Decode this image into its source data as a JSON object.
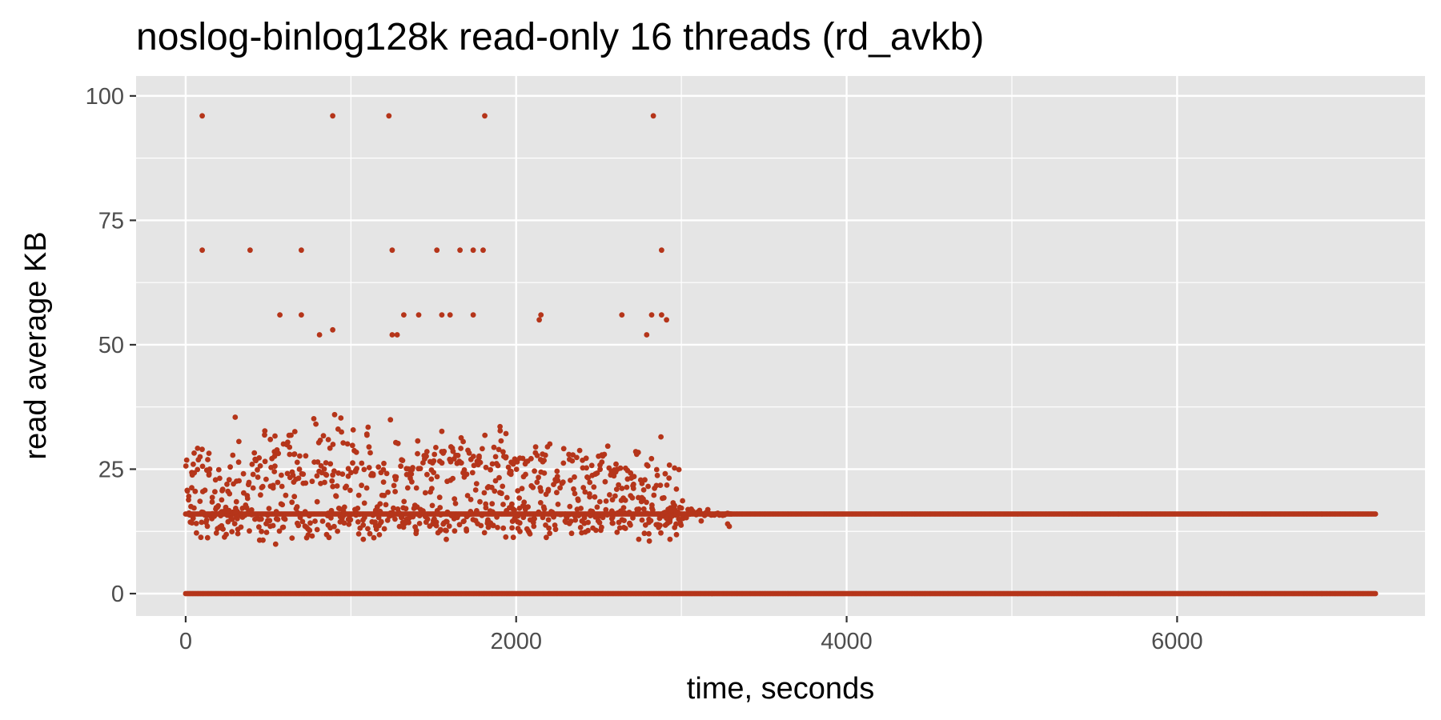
{
  "chart_data": {
    "type": "scatter",
    "title": "noslog-binlog128k read-only 16 threads (rd_avkb)",
    "xlabel": "time, seconds",
    "ylabel": "read average KB",
    "xlim": [
      -300,
      7500
    ],
    "ylim": [
      -4.5,
      104
    ],
    "x_ticks": [
      0,
      2000,
      4000,
      6000
    ],
    "x_tick_labels": [
      "0",
      "2000",
      "4000",
      "6000"
    ],
    "y_ticks": [
      0,
      25,
      50,
      75,
      100
    ],
    "y_tick_labels": [
      "0",
      "25",
      "50",
      "75",
      "100"
    ],
    "grid": true,
    "legend": "none",
    "point_color": "#B5351A",
    "panel_color": "#E5E5E5",
    "grid_color": "#FFFFFF",
    "x_range": [
      0,
      7200
    ],
    "sample_interval_seconds": 10,
    "baseline_series": [
      {
        "name": "",
        "y": 0,
        "x_from": 0,
        "x_to": 7200
      },
      {
        "name": "",
        "y": 16,
        "x_from": 0,
        "x_to": 7200
      }
    ],
    "dense_region": {
      "x_from": 0,
      "x_to": 3000,
      "y_min": 4,
      "y_max": 44
    },
    "transition_region": {
      "x_from": 2900,
      "x_to": 3300,
      "y_min": 13,
      "y_max": 23
    },
    "outliers": [
      {
        "x": 100,
        "y": 96
      },
      {
        "x": 890,
        "y": 96
      },
      {
        "x": 1230,
        "y": 96
      },
      {
        "x": 1810,
        "y": 96
      },
      {
        "x": 2830,
        "y": 96
      },
      {
        "x": 100,
        "y": 69
      },
      {
        "x": 390,
        "y": 69
      },
      {
        "x": 700,
        "y": 69
      },
      {
        "x": 1250,
        "y": 69
      },
      {
        "x": 1520,
        "y": 69
      },
      {
        "x": 1660,
        "y": 69
      },
      {
        "x": 1740,
        "y": 69
      },
      {
        "x": 1800,
        "y": 69
      },
      {
        "x": 2880,
        "y": 69
      },
      {
        "x": 570,
        "y": 56
      },
      {
        "x": 700,
        "y": 56
      },
      {
        "x": 1320,
        "y": 56
      },
      {
        "x": 1410,
        "y": 56
      },
      {
        "x": 1550,
        "y": 56
      },
      {
        "x": 1600,
        "y": 56
      },
      {
        "x": 1740,
        "y": 56
      },
      {
        "x": 2150,
        "y": 56
      },
      {
        "x": 2640,
        "y": 56
      },
      {
        "x": 2820,
        "y": 56
      },
      {
        "x": 2880,
        "y": 56
      },
      {
        "x": 2910,
        "y": 55
      },
      {
        "x": 890,
        "y": 53
      },
      {
        "x": 810,
        "y": 52
      },
      {
        "x": 1250,
        "y": 52
      },
      {
        "x": 1280,
        "y": 52
      },
      {
        "x": 2790,
        "y": 52
      },
      {
        "x": 2140,
        "y": 55
      },
      {
        "x": 3280,
        "y": 14
      },
      {
        "x": 3290,
        "y": 13.5
      }
    ]
  }
}
